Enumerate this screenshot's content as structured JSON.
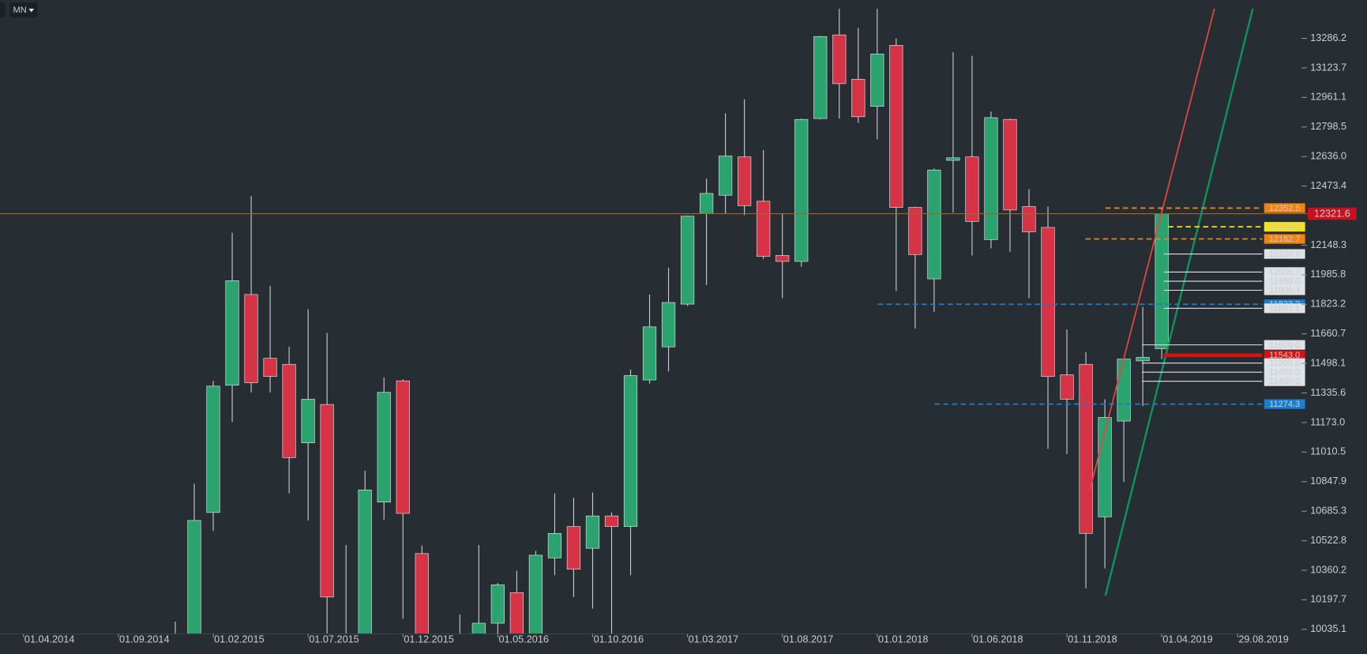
{
  "chart_data": {
    "type": "candlestick",
    "timeframe": "MN",
    "categories": [
      "01.04.2014",
      null,
      null,
      null,
      null,
      "01.09.2014",
      null,
      null,
      null,
      null,
      "01.02.2015",
      null,
      null,
      null,
      null,
      "01.07.2015",
      null,
      null,
      null,
      null,
      "01.12.2015",
      null,
      null,
      null,
      null,
      "01.05.2016",
      null,
      null,
      null,
      null,
      "01.10.2016",
      null,
      null,
      null,
      null,
      "01.03.2017",
      null,
      null,
      null,
      null,
      "01.08.2017",
      null,
      null,
      null,
      null,
      "01.01.2018",
      null,
      null,
      null,
      null,
      "01.06.2018",
      null,
      null,
      null,
      null,
      "01.11.2018",
      null,
      null,
      null,
      null,
      "01.04.2019",
      null,
      null,
      null,
      "29.08.2019"
    ],
    "open": [
      null,
      null,
      null,
      null,
      null,
      null,
      null,
      null,
      9900,
      9900,
      10678,
      11378,
      11877,
      11526,
      11493,
      11061,
      11272,
      9990,
      9950,
      10735,
      11402,
      10452,
      null,
      9900,
      9980,
      10069,
      10237,
      9980,
      10428,
      10601,
      10481,
      10659,
      10601,
      11407,
      11589,
      11824,
      12322,
      12423,
      12634,
      12390,
      12092,
      12059,
      12845,
      13305,
      13061,
      12912,
      13248,
      12356,
      11963,
      12615,
      12634,
      12179,
      12840,
      12361,
      12246,
      11435,
      11493,
      10654,
      11181,
      11512,
      11579,
      null,
      null,
      null,
      null
    ],
    "high": [
      null,
      null,
      null,
      null,
      null,
      null,
      null,
      null,
      10078,
      10836,
      11402,
      12217,
      12418,
      11924,
      11589,
      11795,
      11666,
      10500,
      10908,
      11421,
      11410,
      10496,
      null,
      10117,
      10500,
      10290,
      10357,
      10467,
      10783,
      10759,
      10788,
      10678,
      11464,
      11877,
      12025,
      12310,
      12514,
      12874,
      12951,
      12672,
      12322,
      12845,
      13300,
      13449,
      13344,
      13449,
      13286,
      12360,
      12570,
      13209,
      13190,
      12884,
      12845,
      12457,
      12361,
      11685,
      11560,
      11301,
      11525,
      11809,
      12352.5,
      null,
      null,
      null,
      null
    ],
    "low": [
      null,
      null,
      null,
      null,
      null,
      null,
      null,
      null,
      9850,
      9800,
      10577,
      11176,
      11339,
      11339,
      10783,
      10634,
      9950,
      9800,
      9900,
      10639,
      10093,
      9900,
      null,
      9800,
      9900,
      10000,
      9900,
      9950,
      10333,
      10213,
      10150,
      9990,
      10333,
      11387,
      11454,
      11814,
      11929,
      12322,
      12313,
      12073,
      11857,
      12030,
      12840,
      12845,
      12821,
      12730,
      11896,
      11690,
      11780,
      12327,
      12092,
      12131,
      12112,
      11857,
      11028,
      11000,
      10261,
      10371,
      10846,
      11263,
      11522,
      null,
      null,
      null,
      null
    ],
    "close": [
      null,
      null,
      null,
      null,
      null,
      null,
      null,
      null,
      9950,
      10634,
      11373,
      11953,
      11392,
      11426,
      10980,
      11301,
      10213,
      9900,
      10802,
      11339,
      10673,
      9950,
      null,
      9950,
      10069,
      10280,
      9950,
      10443,
      10563,
      10366,
      10659,
      10601,
      11431,
      11699,
      11833,
      12308,
      12433,
      12639,
      12366,
      12087,
      12059,
      12840,
      13296,
      13037,
      12855,
      13200,
      12356,
      12097,
      12562,
      12629,
      12279,
      12850,
      12342,
      12222,
      11426,
      11301,
      10563,
      11201,
      11522,
      11531,
      12321.6,
      null,
      null,
      null,
      null
    ],
    "up_color": "#2ba36e",
    "down_color": "#d63346",
    "ylim": [
      10010,
      13497
    ],
    "yticks": [
      13286.2,
      13123.7,
      12961.1,
      12798.5,
      {
        "value": 12636,
        "label": "12636.0"
      },
      12473.4,
      12148.3,
      11985.8,
      11823.2,
      11660.7,
      11498.1,
      11335.6,
      {
        "value": 11173,
        "label": "11173.0"
      },
      11010.5,
      10847.9,
      10685.3,
      10522.8,
      10360.2,
      10197.7,
      10035.1
    ],
    "last_price": 12321.6,
    "last_price_color": "#c8101e",
    "levels": [
      {
        "level": 12352.5,
        "color": "#f5820f",
        "dashed": true,
        "text_color": "#1e1e1e"
      },
      {
        "level": 12249.6,
        "color": "#f7e21a",
        "dashed": true,
        "text_color": "#1e1e1e"
      },
      {
        "level": 12182.7,
        "color": "#f5820f",
        "dashed": true,
        "text_color": "#1e1e1e"
      },
      {
        "level": {
          "value": 12100,
          "label": "12100.0"
        },
        "color": "#dfe3e6",
        "dashed": false,
        "text_color": "#1e1e1e"
      },
      {
        "level": 12000.7,
        "color": "#dfe3e6",
        "dashed": false,
        "text_color": "#1e1e1e"
      },
      {
        "level": {
          "value": 11950,
          "label": "11950.0"
        },
        "color": "#dfe3e6",
        "dashed": false,
        "text_color": "#1e1e1e"
      },
      {
        "level": 11900.4,
        "color": "#dfe3e6",
        "dashed": false,
        "text_color": "#1e1e1e"
      },
      {
        "level": 11823.2,
        "color": "#1a7fd0",
        "dashed": true,
        "text_color": "#ffffff"
      },
      {
        "level": 11801.1,
        "color": "#dfe3e6",
        "dashed": false,
        "text_color": "#1e1e1e"
      },
      {
        "level": {
          "value": 11600,
          "label": "11600.0"
        },
        "color": "#dfe3e6",
        "dashed": false,
        "text_color": "#1e1e1e"
      },
      {
        "level": {
          "value": 11543,
          "label": "11543.0"
        },
        "color": "#d41414",
        "dashed": false,
        "text_color": "#ffffff"
      },
      {
        "level": {
          "value": 11500,
          "label": "11500.0"
        },
        "color": "#dfe3e6",
        "dashed": false,
        "text_color": "#1e1e1e"
      },
      {
        "level": {
          "value": 11450,
          "label": "11450.0"
        },
        "color": "#dfe3e6",
        "dashed": false,
        "text_color": "#1e1e1e"
      },
      {
        "level": {
          "value": 11400,
          "label": "11400.0"
        },
        "color": "#dfe3e6",
        "dashed": false,
        "text_color": "#1e1e1e"
      },
      {
        "level": 11274.3,
        "color": "#1a7fd0",
        "dashed": true,
        "text_color": "#ffffff"
      }
    ]
  }
}
